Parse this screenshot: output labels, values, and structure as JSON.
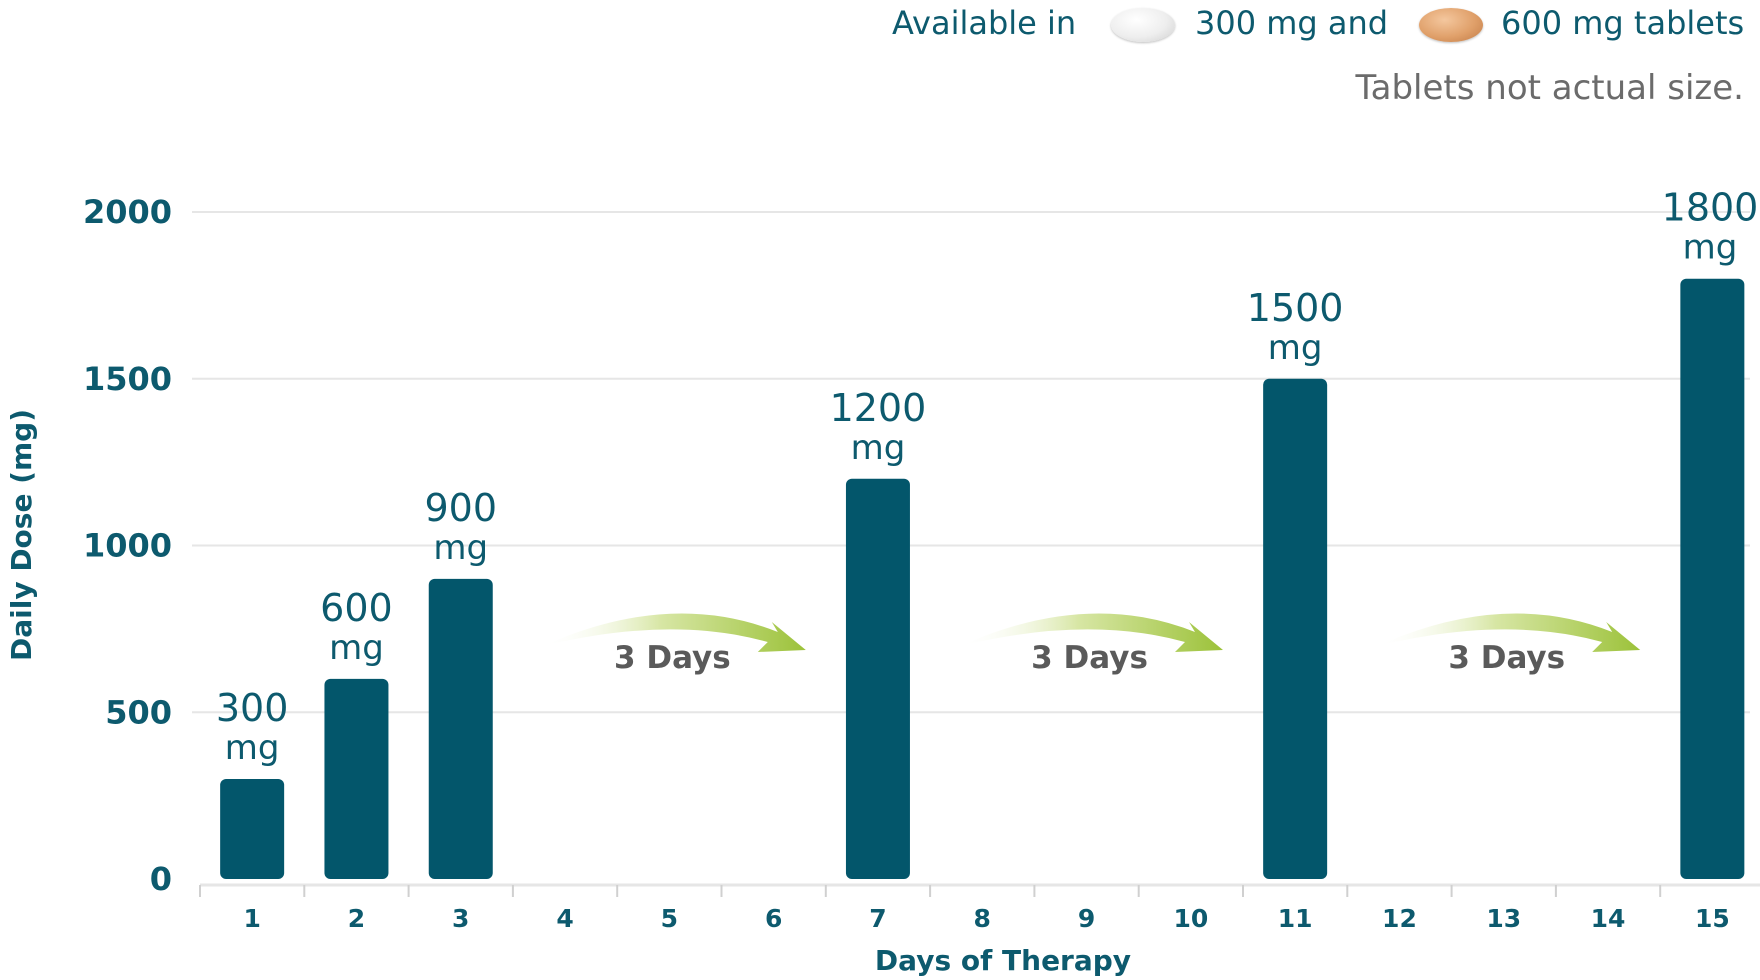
{
  "header": {
    "available_prefix": "Available in",
    "tablet_300_label": "300 mg and",
    "tablet_600_label": "600 mg tablets",
    "size_note": "Tablets not actual size."
  },
  "colors": {
    "bar": "#03566b",
    "axis_text": "#0d5a6e",
    "grid": "#e6e6e6",
    "arrow": "#a6c63a",
    "interval_text": "#5a5a5a"
  },
  "icons": [
    "tablet-300mg-icon",
    "tablet-600mg-icon",
    "arrow-right-icon"
  ],
  "chart_data": {
    "type": "bar",
    "title": "",
    "xlabel": "Days of Therapy",
    "ylabel": "Daily Dose (mg)",
    "ylim": [
      0,
      2000
    ],
    "yticks": [
      0,
      500,
      1000,
      1500,
      2000
    ],
    "grid": true,
    "categories": [
      "1",
      "2",
      "3",
      "4",
      "5",
      "6",
      "7",
      "8",
      "9",
      "10",
      "11",
      "12",
      "13",
      "14",
      "15"
    ],
    "values": [
      300,
      600,
      900,
      null,
      null,
      null,
      1200,
      null,
      null,
      null,
      1500,
      null,
      null,
      null,
      1800
    ],
    "data_labels": [
      {
        "day": "1",
        "value": "300",
        "unit": "mg"
      },
      {
        "day": "2",
        "value": "600",
        "unit": "mg"
      },
      {
        "day": "3",
        "value": "900",
        "unit": "mg"
      },
      {
        "day": "7",
        "value": "1200",
        "unit": "mg"
      },
      {
        "day": "11",
        "value": "1500",
        "unit": "mg"
      },
      {
        "day": "15",
        "value": "1800",
        "unit": "mg"
      }
    ],
    "intervals": [
      {
        "from": "4",
        "to": "6",
        "label": "3 Days"
      },
      {
        "from": "8",
        "to": "10",
        "label": "3 Days"
      },
      {
        "from": "12",
        "to": "14",
        "label": "3 Days"
      }
    ]
  }
}
